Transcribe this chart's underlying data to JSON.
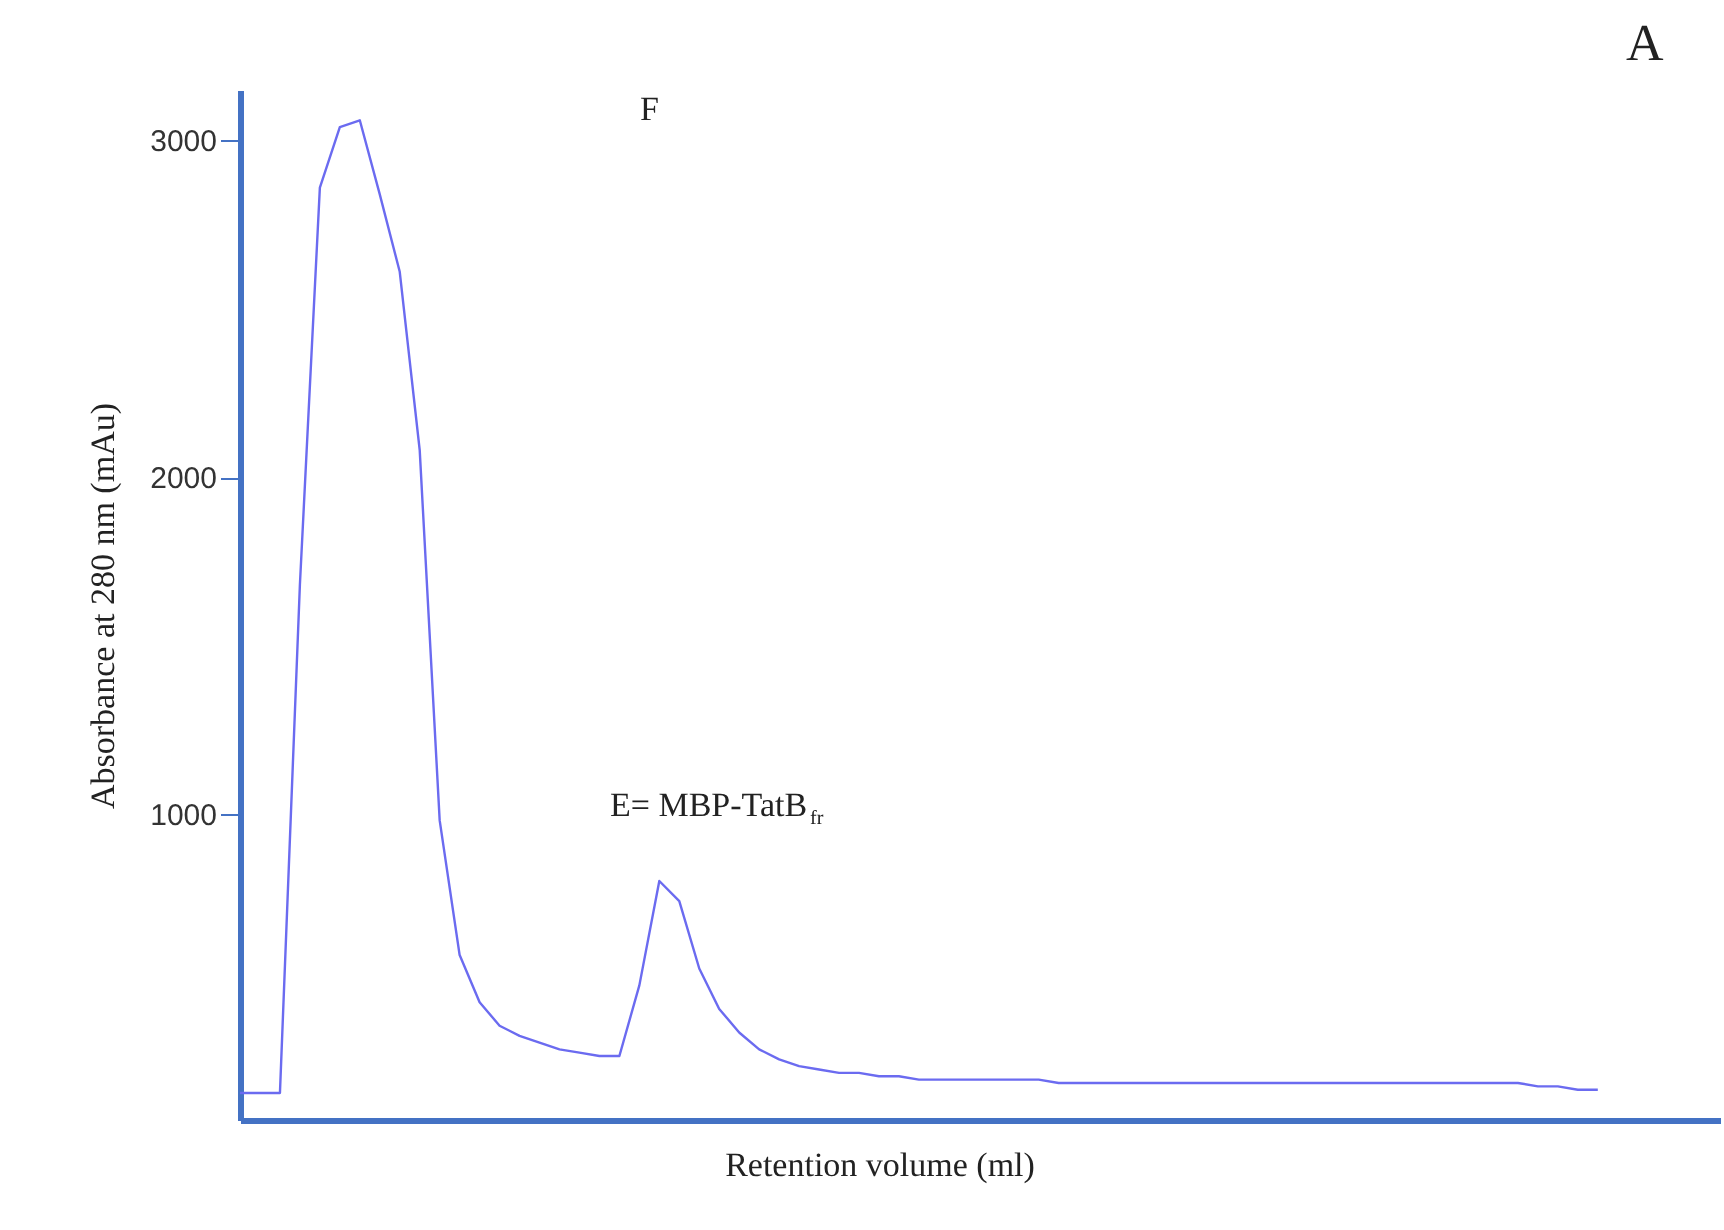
{
  "chart_data": {
    "type": "line",
    "xlabel": "Retention volume (ml)",
    "ylabel": "Absorbance at 280 nm (mAu)",
    "categories": [
      null,
      null,
      null,
      null,
      null,
      null,
      null,
      null,
      null,
      null,
      null,
      null,
      null,
      null,
      null,
      null,
      null,
      null,
      null,
      null,
      null,
      null,
      null,
      null,
      null,
      null,
      null,
      null,
      null,
      null,
      null,
      null,
      null,
      null,
      null,
      null,
      null,
      null,
      null,
      null,
      null,
      null,
      null,
      null,
      null,
      null,
      null,
      null,
      null,
      null,
      null,
      null,
      null,
      null,
      null,
      null,
      null,
      null,
      null,
      null,
      null,
      null,
      null,
      null,
      null,
      null,
      null,
      null,
      null
    ],
    "series": [
      {
        "color": "#6b6bf0",
        "values": [
          170,
          170,
          170,
          1680,
          2860,
          3040,
          3060,
          2840,
          2610,
          2080,
          980,
          580,
          440,
          370,
          340,
          320,
          300,
          290,
          280,
          280,
          490,
          800,
          740,
          540,
          420,
          350,
          300,
          270,
          250,
          240,
          230,
          230,
          220,
          220,
          210,
          210,
          210,
          210,
          210,
          210,
          210,
          200,
          200,
          200,
          200,
          200,
          200,
          200,
          200,
          200,
          200,
          200,
          200,
          200,
          200,
          200,
          200,
          200,
          200,
          200,
          200,
          200,
          200,
          200,
          200,
          190,
          190,
          180,
          180
        ]
      }
    ],
    "ylim": [
      90,
      3150
    ],
    "yticks": [
      1000,
      2000,
      3000
    ],
    "tick_labels": "y",
    "grid": false,
    "legend": false,
    "marker": "none",
    "line_style": "solid",
    "annotations": [
      "F",
      "E= MBP-TatB$_{fr}$",
      "A"
    ]
  }
}
